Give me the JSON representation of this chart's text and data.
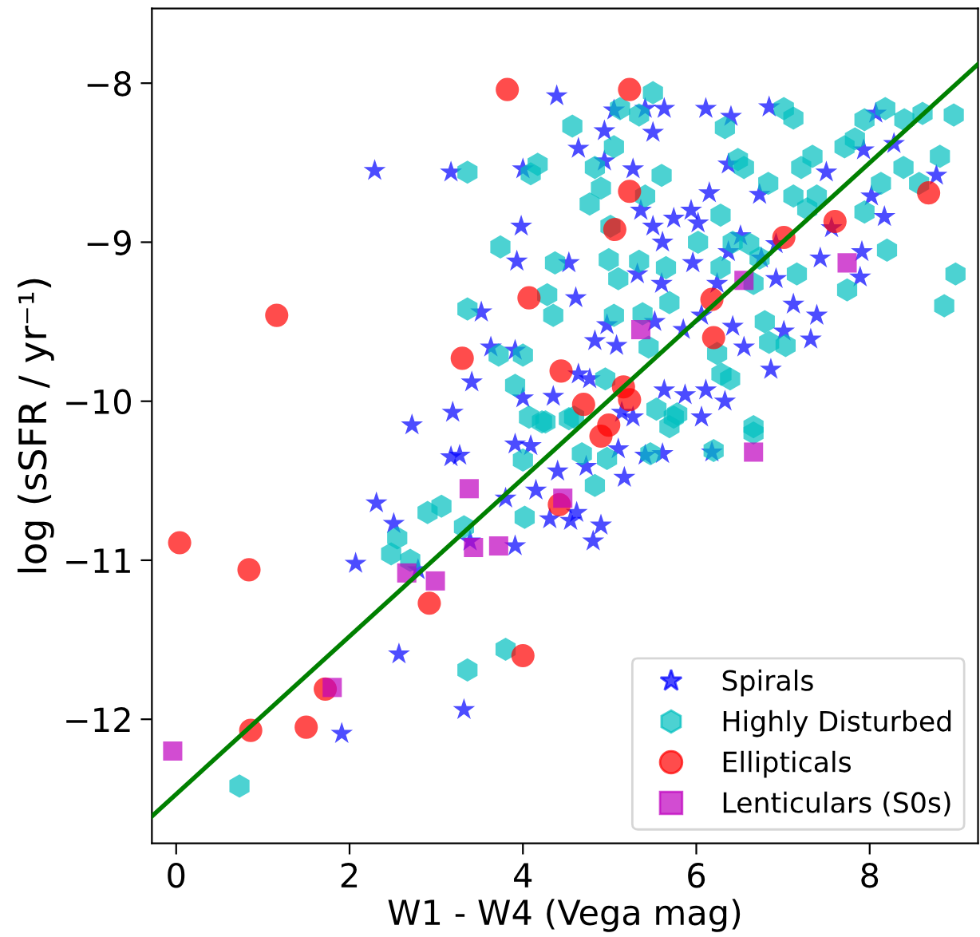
{
  "chart_data": {
    "type": "scatter",
    "xlabel": "W1 - W4 (Vega mag)",
    "ylabel": "log (sSFR / yr⁻¹)",
    "xlim": [
      -0.28,
      9.25
    ],
    "ylim": [
      -12.78,
      -7.53
    ],
    "xticks": [
      0,
      2,
      4,
      6,
      8
    ],
    "yticks": [
      -12,
      -11,
      -10,
      -9,
      -8
    ],
    "grid": false,
    "legend": "bottom right",
    "series": [
      {
        "name": "Spirals",
        "color": "#0000ff",
        "marker": "star",
        "x": [
          2.29,
          3.17,
          4.0,
          4.39,
          3.98,
          3.93,
          3.52,
          3.63,
          3.91,
          3.41,
          3.19,
          2.72,
          4.0,
          4.35,
          3.17,
          3.27,
          3.91,
          4.09,
          2.31,
          2.51,
          2.07,
          2.57,
          3.32,
          1.91,
          3.39,
          3.91,
          3.8,
          4.15,
          4.31,
          4.4,
          2.79,
          5.05,
          5.41,
          5.63,
          6.11,
          6.4,
          6.84,
          4.94,
          5.5,
          4.64,
          4.94,
          5.27,
          6.37,
          6.15,
          6.73,
          5.36,
          5.94,
          5.74,
          6.02,
          4.53,
          5.5,
          5.61,
          5.32,
          5.6,
          4.61,
          4.83,
          5.08,
          4.97,
          5.52,
          5.85,
          6.06,
          6.42,
          6.55,
          6.86,
          7.01,
          7.32,
          7.39,
          7.12,
          6.92,
          7.91,
          7.89,
          8.17,
          7.5,
          7.56,
          7.43,
          8.07,
          8.28,
          8.77,
          7.93,
          8.02,
          4.64,
          4.77,
          5.63,
          5.87,
          6.11,
          6.33,
          6.06,
          5.27,
          6.24,
          6.92,
          5.96,
          6.37,
          6.51,
          6.75,
          4.73,
          5.17,
          4.55,
          4.9,
          4.81,
          4.62,
          5.41,
          5.61,
          6.18,
          5.14,
          5.1
        ],
        "values": [
          -8.55,
          -8.56,
          -8.54,
          -8.08,
          -8.9,
          -9.12,
          -9.44,
          -9.66,
          -9.68,
          -9.88,
          -10.07,
          -10.15,
          -9.98,
          -9.97,
          -10.35,
          -10.34,
          -10.27,
          -10.28,
          -10.64,
          -10.77,
          -11.02,
          -11.59,
          -11.94,
          -12.09,
          -10.88,
          -10.91,
          -10.61,
          -10.56,
          -10.74,
          -10.44,
          -11.06,
          -8.17,
          -8.16,
          -8.16,
          -8.16,
          -8.21,
          -8.15,
          -8.3,
          -8.31,
          -8.41,
          -8.49,
          -8.54,
          -8.51,
          -8.69,
          -8.7,
          -8.8,
          -8.8,
          -8.85,
          -8.88,
          -9.13,
          -8.9,
          -9.0,
          -9.2,
          -9.26,
          -9.35,
          -9.62,
          -9.65,
          -9.52,
          -9.5,
          -9.55,
          -9.46,
          -9.53,
          -9.66,
          -9.8,
          -9.56,
          -9.61,
          -9.46,
          -9.39,
          -9.23,
          -9.06,
          -9.22,
          -8.84,
          -8.56,
          -8.91,
          -9.1,
          -8.19,
          -8.38,
          -8.58,
          -8.42,
          -8.71,
          -9.83,
          -9.86,
          -9.93,
          -9.96,
          -9.93,
          -10.0,
          -10.1,
          -10.1,
          -9.26,
          -9.01,
          -9.13,
          -9.06,
          -8.96,
          -9.1,
          -10.41,
          -10.48,
          -10.75,
          -10.78,
          -10.88,
          -10.7,
          -10.34,
          -10.33,
          -10.32,
          -10.07,
          -10.3
        ]
      },
      {
        "name": "Highly Disturbed",
        "color": "#00bfbf",
        "x": [
          3.36,
          4.17,
          4.09,
          3.74,
          4.37,
          4.28,
          4.35,
          3.36,
          3.72,
          4.0,
          3.91,
          4.07,
          4.26,
          4.0,
          2.9,
          3.06,
          3.32,
          2.55,
          2.48,
          2.7,
          4.02,
          3.8,
          3.36,
          0.73,
          5.5,
          4.57,
          5.12,
          5.34,
          6.33,
          7.01,
          7.12,
          8.18,
          7.94,
          8.4,
          8.61,
          8.97,
          8.81,
          7.83,
          7.71,
          7.21,
          7.34,
          4.83,
          5.05,
          5.6,
          6.48,
          6.55,
          6.83,
          4.9,
          4.77,
          5.41,
          5.01,
          6.28,
          7.12,
          7.39,
          7.28,
          7.94,
          8.57,
          8.39,
          8.13,
          4.99,
          5.34,
          5.65,
          6.02,
          6.42,
          6.61,
          6.73,
          5.1,
          6.28,
          5.69,
          6.66,
          7.16,
          7.74,
          8.2,
          8.99,
          8.86,
          5.05,
          5.38,
          6.24,
          6.29,
          6.84,
          7.03,
          6.79,
          6.39,
          5.74,
          4.95,
          6.66,
          4.59,
          5.45,
          5.78,
          5.69,
          5.54,
          4.53,
          4.83,
          4.97,
          4.68,
          5.47,
          6.2,
          6.66,
          4.22
        ],
        "values": [
          -8.56,
          -8.51,
          -8.57,
          -9.03,
          -9.13,
          -9.33,
          -9.46,
          -9.42,
          -9.71,
          -9.71,
          -9.9,
          -10.1,
          -10.13,
          -10.37,
          -10.7,
          -10.66,
          -10.79,
          -10.86,
          -10.96,
          -11.0,
          -10.73,
          -11.56,
          -11.69,
          -12.42,
          -8.06,
          -8.27,
          -8.16,
          -8.2,
          -8.28,
          -8.16,
          -8.22,
          -8.16,
          -8.23,
          -8.23,
          -8.19,
          -8.2,
          -8.46,
          -8.35,
          -8.4,
          -8.53,
          -8.46,
          -8.53,
          -8.4,
          -8.58,
          -8.48,
          -8.53,
          -8.63,
          -8.66,
          -8.76,
          -8.71,
          -8.9,
          -8.83,
          -8.71,
          -8.71,
          -8.79,
          -8.81,
          -8.63,
          -8.53,
          -8.63,
          -9.11,
          -9.12,
          -9.16,
          -9.0,
          -9.0,
          -9.01,
          -9.1,
          -9.23,
          -9.16,
          -9.38,
          -9.26,
          -9.2,
          -9.3,
          -9.05,
          -9.2,
          -9.4,
          -9.46,
          -9.45,
          -9.7,
          -9.83,
          -9.63,
          -9.65,
          -9.5,
          -9.86,
          -10.1,
          -9.86,
          -10.16,
          -10.1,
          -9.66,
          -10.08,
          -10.16,
          -10.05,
          -10.11,
          -10.53,
          -10.36,
          -10.33,
          -10.33,
          -10.31,
          -10.2,
          -10.13
        ]
      },
      {
        "name": "Ellipticals",
        "color": "#ff0000",
        "marker": "circle",
        "x": [
          0.04,
          0.84,
          0.86,
          1.16,
          1.5,
          1.72,
          2.92,
          3.3,
          3.82,
          4.0,
          4.07,
          4.42,
          4.44,
          4.7,
          5.16,
          5.23,
          4.99,
          4.9,
          5.23,
          5.23,
          5.06,
          6.18,
          6.2,
          7.01,
          7.6,
          8.68
        ],
        "values": [
          -10.89,
          -11.06,
          -12.07,
          -9.46,
          -12.05,
          -11.81,
          -11.27,
          -9.73,
          -8.04,
          -11.6,
          -9.35,
          -10.65,
          -9.81,
          -10.02,
          -9.91,
          -9.99,
          -10.15,
          -10.22,
          -8.04,
          -8.68,
          -8.92,
          -9.36,
          -9.6,
          -8.97,
          -8.87,
          -8.69
        ]
      },
      {
        "name": "Lenticulars (S0s)",
        "color": "#bf00bf",
        "marker": "square",
        "x": [
          -0.04,
          1.8,
          2.66,
          2.99,
          3.38,
          3.43,
          3.72,
          4.46,
          5.36,
          6.55,
          6.66,
          7.74
        ],
        "values": [
          -12.2,
          -11.8,
          -11.08,
          -11.13,
          -10.55,
          -10.92,
          -10.91,
          -10.61,
          -9.55,
          -9.24,
          -10.32,
          -9.13
        ]
      },
      {
        "type": "line",
        "color": "#008000",
        "x": [
          -0.28,
          9.25
        ],
        "values": [
          -12.61,
          -7.88
        ]
      }
    ]
  }
}
